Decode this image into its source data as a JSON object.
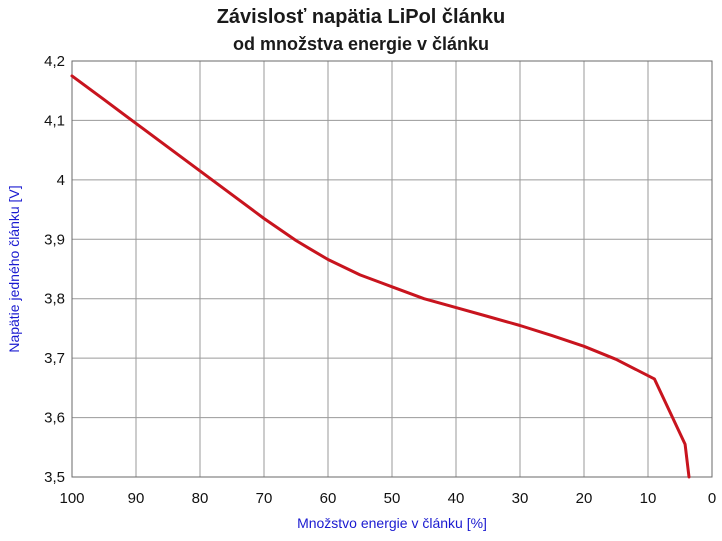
{
  "chart_data": {
    "type": "line",
    "title": "Závislosť napätia LiPol článku",
    "subtitle": "od množstva energie v článku",
    "xlabel": "Množstvo energie v článku [%]",
    "ylabel": "Napätie jedného článku [V]",
    "xlim": [
      100,
      0
    ],
    "ylim": [
      3.5,
      4.2
    ],
    "x_reversed": true,
    "grid": true,
    "x_ticks": [
      "100",
      "90",
      "80",
      "70",
      "60",
      "50",
      "40",
      "30",
      "20",
      "10",
      "0"
    ],
    "y_ticks": [
      "4,2",
      "4,1",
      "4",
      "3,9",
      "3,8",
      "3,7",
      "3,6",
      "3,5"
    ],
    "line_color": "#c8141e",
    "series": [
      {
        "x": [
          100,
          95,
          90,
          85,
          80,
          75,
          70,
          65,
          63,
          60,
          55,
          50,
          45,
          40,
          35,
          30,
          25,
          20,
          15,
          9,
          4.2,
          3.6
        ],
        "y": [
          4.175,
          4.135,
          4.095,
          4.055,
          4.015,
          3.975,
          3.935,
          3.898,
          3.885,
          3.866,
          3.84,
          3.82,
          3.8,
          3.785,
          3.77,
          3.755,
          3.738,
          3.72,
          3.698,
          3.665,
          3.555,
          3.5
        ]
      }
    ]
  }
}
